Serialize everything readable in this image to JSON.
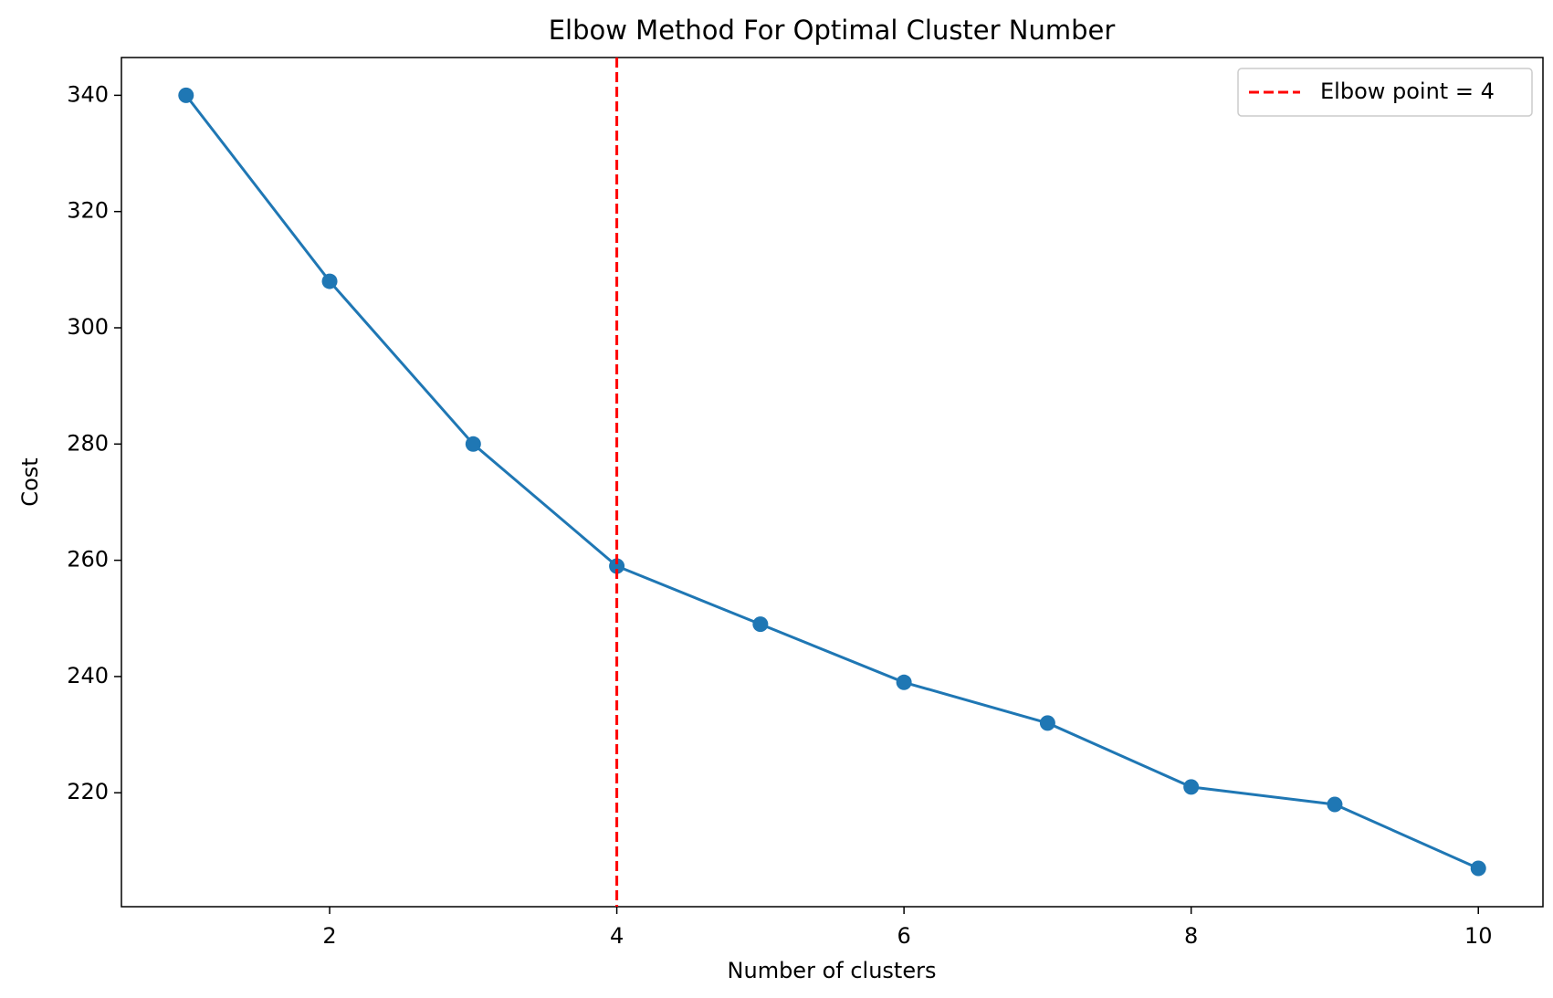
{
  "chart_data": {
    "type": "line",
    "title": "Elbow Method For Optimal Cluster Number",
    "x_label": "Number of clusters",
    "y_label": "Cost",
    "x": [
      1,
      2,
      3,
      4,
      5,
      6,
      7,
      8,
      9,
      10
    ],
    "series": [
      {
        "name": null,
        "color": "#1f77b4",
        "values": [
          340,
          308,
          280,
          259,
          249,
          239,
          232,
          221,
          218,
          207
        ]
      }
    ],
    "vline": {
      "x": 4,
      "label": "Elbow point = 4",
      "color": "#ff0000"
    },
    "xlim": [
      0.55,
      10.45
    ],
    "xticks": [
      2,
      4,
      6,
      8,
      10
    ],
    "ylim": [
      200.4,
      346.5
    ],
    "yticks": [
      220,
      240,
      260,
      280,
      300,
      320,
      340
    ],
    "legend": "upper right",
    "grid": false
  }
}
